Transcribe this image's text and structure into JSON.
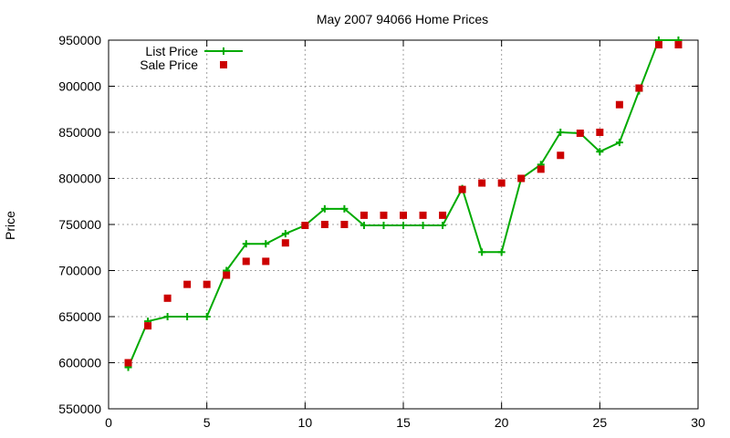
{
  "chart_data": {
    "type": "line",
    "title": "May 2007 94066 Home Prices",
    "xlabel": "",
    "ylabel": "Price",
    "xlim": [
      0,
      30
    ],
    "ylim": [
      550000,
      950000
    ],
    "x_ticks": [
      0,
      5,
      10,
      15,
      20,
      25,
      30
    ],
    "y_ticks": [
      550000,
      600000,
      650000,
      700000,
      750000,
      800000,
      850000,
      900000,
      950000
    ],
    "grid": true,
    "legend_position": "top-left",
    "series": [
      {
        "name": "List Price",
        "style": "line-with-plus-markers",
        "color": "#00aa00",
        "x": [
          1,
          2,
          3,
          4,
          5,
          6,
          7,
          8,
          9,
          10,
          11,
          12,
          13,
          14,
          15,
          16,
          17,
          18,
          19,
          20,
          21,
          22,
          23,
          24,
          25,
          26,
          27,
          28,
          29
        ],
        "values": [
          595000,
          645000,
          650000,
          650000,
          650000,
          700000,
          729000,
          729000,
          740000,
          749000,
          767000,
          767000,
          749000,
          749000,
          749000,
          749000,
          749000,
          789000,
          720000,
          720000,
          800000,
          815000,
          850000,
          849000,
          829000,
          839000,
          895000,
          950000,
          950000
        ]
      },
      {
        "name": "Sale Price",
        "style": "square-markers",
        "color": "#cc0000",
        "x": [
          1,
          2,
          3,
          4,
          5,
          6,
          7,
          8,
          9,
          10,
          11,
          12,
          13,
          14,
          15,
          16,
          17,
          18,
          19,
          20,
          21,
          22,
          23,
          24,
          25,
          26,
          27,
          28,
          29
        ],
        "values": [
          600000,
          640000,
          670000,
          685000,
          685000,
          695000,
          710000,
          710000,
          730000,
          749000,
          750000,
          750000,
          760000,
          760000,
          760000,
          760000,
          760000,
          788000,
          795000,
          795000,
          800000,
          810000,
          825000,
          849000,
          850000,
          880000,
          898000,
          945000,
          945000
        ]
      }
    ]
  }
}
